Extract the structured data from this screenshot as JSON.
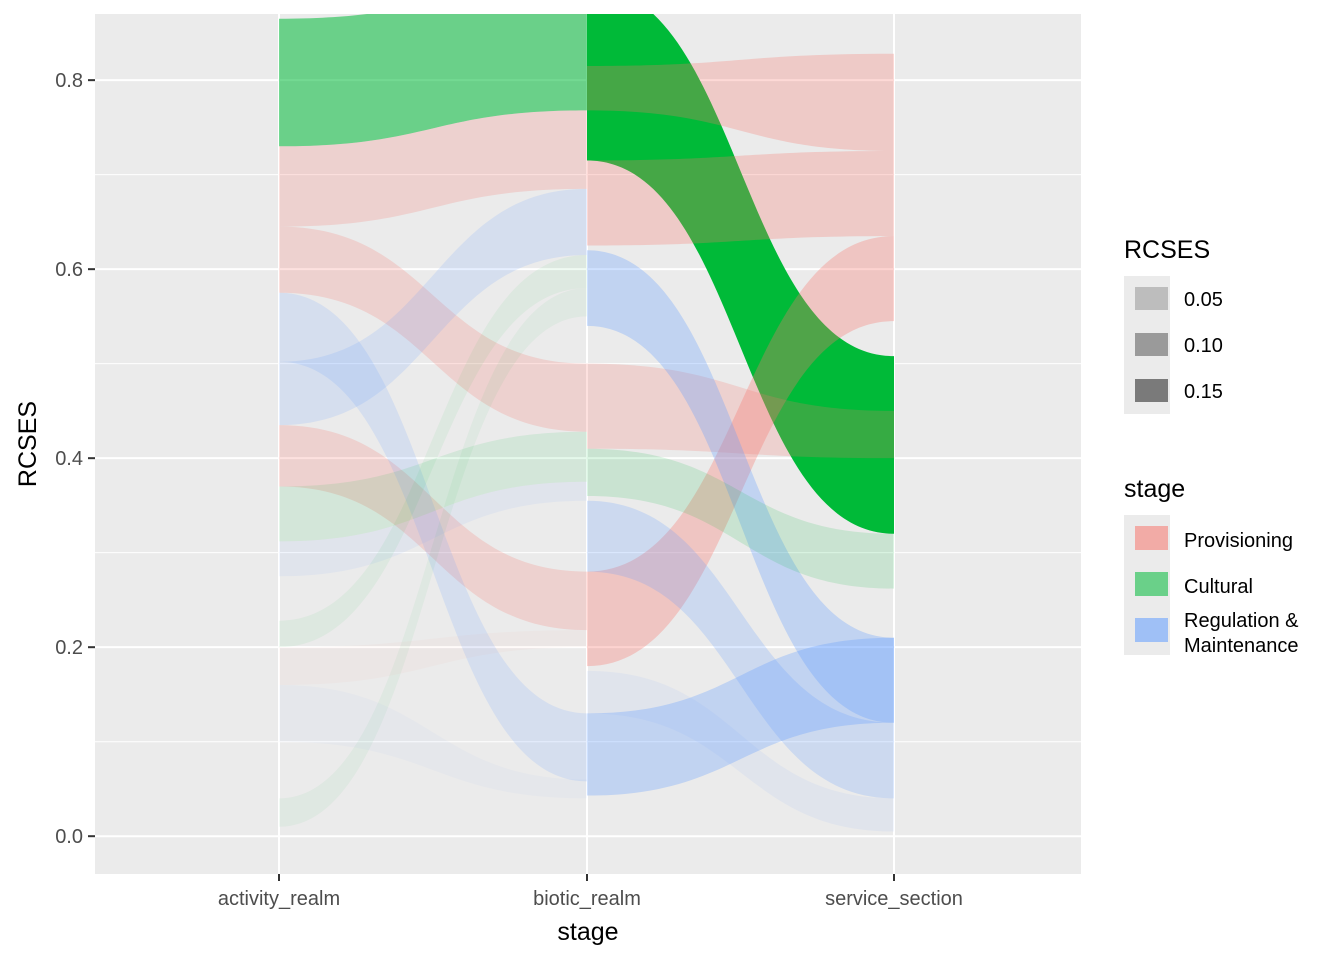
{
  "chart_data": {
    "type": "alluvial",
    "xlabel": "stage",
    "ylabel": "RCSES",
    "ylim": [
      -0.04,
      0.87
    ],
    "yticks": [
      0.0,
      0.2,
      0.4,
      0.6,
      0.8
    ],
    "ytick_labels": [
      "0.0",
      "0.2",
      "0.4",
      "0.6",
      "0.8"
    ],
    "categories": [
      "activity_realm",
      "biotic_realm",
      "service_section"
    ],
    "legend": {
      "placement": "right",
      "alpha": {
        "title": "RCSES",
        "entries": [
          {
            "label": "0.05",
            "shade": "#bdbdbd"
          },
          {
            "label": "0.10",
            "shade": "#9a9a9a"
          },
          {
            "label": "0.15",
            "shade": "#7a7a7a"
          }
        ]
      },
      "fill": {
        "title": "stage",
        "entries": [
          {
            "lines": [
              "Provisioning"
            ],
            "color": "#F8766D"
          },
          {
            "lines": [
              "Cultural"
            ],
            "color": "#00BA38"
          },
          {
            "lines": [
              "Regulation &",
              "Maintenance"
            ],
            "color": "#619CFF"
          }
        ]
      }
    },
    "flows": [
      {
        "group": "Cultural",
        "from": 0,
        "to": 1,
        "y0": [
          0.73,
          0.865
        ],
        "y1": [
          0.768,
          0.9
        ],
        "opacity": 0.55
      },
      {
        "group": "Provisioning",
        "from": 0,
        "to": 1,
        "y0": [
          0.645,
          0.73
        ],
        "y1": [
          0.685,
          0.768
        ],
        "opacity": 0.22
      },
      {
        "group": "Provisioning",
        "from": 0,
        "to": 1,
        "y0": [
          0.575,
          0.645
        ],
        "y1": [
          0.428,
          0.5
        ],
        "opacity": 0.22
      },
      {
        "group": "Provisioning",
        "from": 0,
        "to": 1,
        "y0": [
          0.37,
          0.435
        ],
        "y1": [
          0.218,
          0.28
        ],
        "opacity": 0.22
      },
      {
        "group": "Regulation & Maintenance",
        "from": 0,
        "to": 1,
        "y0": [
          0.435,
          0.502
        ],
        "y1": [
          0.615,
          0.685
        ],
        "opacity": 0.16
      },
      {
        "group": "Regulation & Maintenance",
        "from": 0,
        "to": 1,
        "y0": [
          0.502,
          0.575
        ],
        "y1": [
          0.058,
          0.13
        ],
        "opacity": 0.16
      },
      {
        "group": "Regulation & Maintenance",
        "from": 0,
        "to": 1,
        "y0": [
          0.275,
          0.312
        ],
        "y1": [
          0.355,
          0.375
        ],
        "opacity": 0.08
      },
      {
        "group": "Cultural",
        "from": 0,
        "to": 1,
        "y0": [
          0.312,
          0.37
        ],
        "y1": [
          0.375,
          0.428
        ],
        "opacity": 0.1
      },
      {
        "group": "Cultural",
        "from": 0,
        "to": 1,
        "y0": [
          0.2,
          0.228
        ],
        "y1": [
          0.58,
          0.615
        ],
        "opacity": 0.06
      },
      {
        "group": "Cultural",
        "from": 0,
        "to": 1,
        "y0": [
          0.01,
          0.04
        ],
        "y1": [
          0.55,
          0.58
        ],
        "opacity": 0.05
      },
      {
        "group": "Regulation & Maintenance",
        "from": 0,
        "to": 1,
        "y0": [
          0.1,
          0.16
        ],
        "y1": [
          0.04,
          0.06
        ],
        "opacity": 0.04
      },
      {
        "group": "Provisioning",
        "from": 0,
        "to": 1,
        "y0": [
          0.16,
          0.2
        ],
        "y1": [
          0.2,
          0.218
        ],
        "opacity": 0.04
      },
      {
        "group": "Cultural",
        "from": 1,
        "to": 2,
        "y0": [
          0.715,
          0.9
        ],
        "y1": [
          0.32,
          0.508
        ],
        "opacity": 1.0
      },
      {
        "group": "Provisioning",
        "from": 1,
        "to": 2,
        "y0": [
          0.768,
          0.815
        ],
        "y1": [
          0.725,
          0.828
        ],
        "opacity": 0.28
      },
      {
        "group": "Provisioning",
        "from": 1,
        "to": 2,
        "y0": [
          0.625,
          0.715
        ],
        "y1": [
          0.635,
          0.725
        ],
        "opacity": 0.28
      },
      {
        "group": "Provisioning",
        "from": 1,
        "to": 2,
        "y0": [
          0.18,
          0.28
        ],
        "y1": [
          0.545,
          0.635
        ],
        "opacity": 0.32
      },
      {
        "group": "Provisioning",
        "from": 1,
        "to": 2,
        "y0": [
          0.41,
          0.5
        ],
        "y1": [
          0.4,
          0.45
        ],
        "opacity": 0.22
      },
      {
        "group": "Regulation & Maintenance",
        "from": 1,
        "to": 2,
        "y0": [
          0.54,
          0.62
        ],
        "y1": [
          0.12,
          0.21
        ],
        "opacity": 0.3
      },
      {
        "group": "Regulation & Maintenance",
        "from": 1,
        "to": 2,
        "y0": [
          0.043,
          0.13
        ],
        "y1": [
          0.12,
          0.21
        ],
        "opacity": 0.3
      },
      {
        "group": "Regulation & Maintenance",
        "from": 1,
        "to": 2,
        "y0": [
          0.28,
          0.355
        ],
        "y1": [
          0.04,
          0.12
        ],
        "opacity": 0.22
      },
      {
        "group": "Regulation & Maintenance",
        "from": 1,
        "to": 2,
        "y0": [
          0.13,
          0.175
        ],
        "y1": [
          0.005,
          0.04
        ],
        "opacity": 0.08
      },
      {
        "group": "Cultural",
        "from": 1,
        "to": 2,
        "y0": [
          0.36,
          0.41
        ],
        "y1": [
          0.262,
          0.32
        ],
        "opacity": 0.14
      }
    ]
  }
}
